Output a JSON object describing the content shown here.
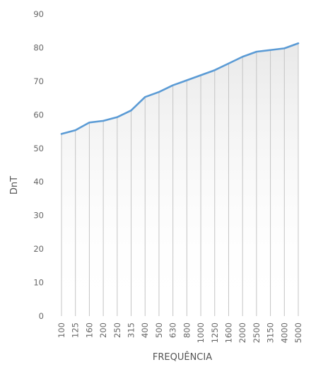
{
  "chart_data": {
    "type": "area",
    "xlabel": "FREQUÊNCIA",
    "ylabel": "DnT",
    "ylim": [
      0,
      90
    ],
    "yticks": [
      0,
      10,
      20,
      30,
      40,
      50,
      60,
      70,
      80,
      90
    ],
    "categories": [
      "100",
      "125",
      "160",
      "200",
      "250",
      "315",
      "400",
      "500",
      "630",
      "800",
      "1000",
      "1250",
      "1600",
      "2000",
      "2500",
      "3150",
      "4000",
      "5000"
    ],
    "values": [
      54.3,
      55.4,
      57.7,
      58.2,
      59.3,
      61.3,
      65.3,
      66.8,
      68.8,
      70.3,
      71.8,
      73.3,
      75.3,
      77.3,
      78.8,
      79.3,
      79.8,
      81.3
    ],
    "grid": false,
    "legend": "none",
    "colors": {
      "line": "#5b9bd5",
      "fill_top": "#d6d6d6",
      "fill_bottom": "#ffffff",
      "drop_lines": "#c4c4c4"
    }
  }
}
